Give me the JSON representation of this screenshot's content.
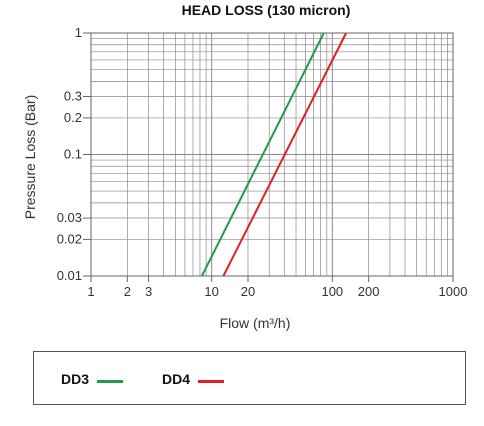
{
  "chart_data": {
    "type": "line",
    "title": "HEAD LOSS (130 micron)",
    "xlabel": "Flow (m³/h)",
    "ylabel": "Pressure Loss (Bar)",
    "x_scale": "log",
    "y_scale": "log",
    "xlim": [
      1,
      1000
    ],
    "ylim": [
      0.01,
      1
    ],
    "x_ticks": [
      {
        "value": 1,
        "label": "1"
      },
      {
        "value": 2,
        "label": "2"
      },
      {
        "value": 3,
        "label": "3"
      },
      {
        "value": 10,
        "label": "10"
      },
      {
        "value": 20,
        "label": "20"
      },
      {
        "value": 100,
        "label": "100"
      },
      {
        "value": 200,
        "label": "200"
      },
      {
        "value": 1000,
        "label": "1000"
      }
    ],
    "y_ticks": [
      {
        "value": 0.01,
        "label": "0.01"
      },
      {
        "value": 0.02,
        "label": "0.02"
      },
      {
        "value": 0.03,
        "label": "0.03"
      },
      {
        "value": 0.1,
        "label": "0.1"
      },
      {
        "value": 0.2,
        "label": "0.2"
      },
      {
        "value": 0.3,
        "label": "0.3"
      },
      {
        "value": 1,
        "label": "1"
      }
    ],
    "grid": true,
    "legend_position": "bottom",
    "series": [
      {
        "name": "DD3",
        "color": "#1e9c46",
        "x": [
          8.3,
          85
        ],
        "y": [
          0.01,
          1
        ]
      },
      {
        "name": "DD4",
        "color": "#e02020",
        "x": [
          12.5,
          130
        ],
        "y": [
          0.01,
          1
        ]
      }
    ]
  }
}
